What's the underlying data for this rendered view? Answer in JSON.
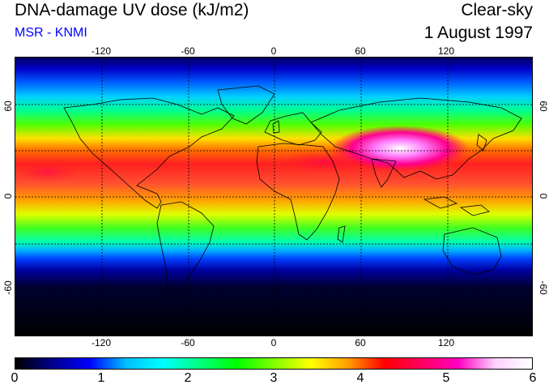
{
  "header": {
    "title": "DNA-damage UV dose (kJ/m2)",
    "subtitle": "MSR - KNMI",
    "condition": "Clear-sky",
    "date": "1 August 1997",
    "subtitle_color": "#0000ff"
  },
  "map": {
    "projection": "equirectangular",
    "lon_range": [
      -180,
      180
    ],
    "lat_range": [
      -90,
      90
    ],
    "graticule": "dashed",
    "lon_ticks": [
      "-120",
      "-60",
      "0",
      "60",
      "120"
    ],
    "lat_ticks": [
      "60",
      "0",
      "-60"
    ],
    "features": [
      "coastlines"
    ]
  },
  "colorbar": {
    "labels": [
      "0",
      "1",
      "2",
      "3",
      "4",
      "5",
      "6"
    ],
    "min": 0,
    "max": 6,
    "colors": [
      "#000000",
      "#00008b",
      "#0000ff",
      "#00bfff",
      "#00ffff",
      "#00ff7f",
      "#00ff00",
      "#7fff00",
      "#ffff00",
      "#ff9f00",
      "#ff0000",
      "#ff0060",
      "#ff00c0",
      "#ffd0ff",
      "#ffffff"
    ]
  }
}
